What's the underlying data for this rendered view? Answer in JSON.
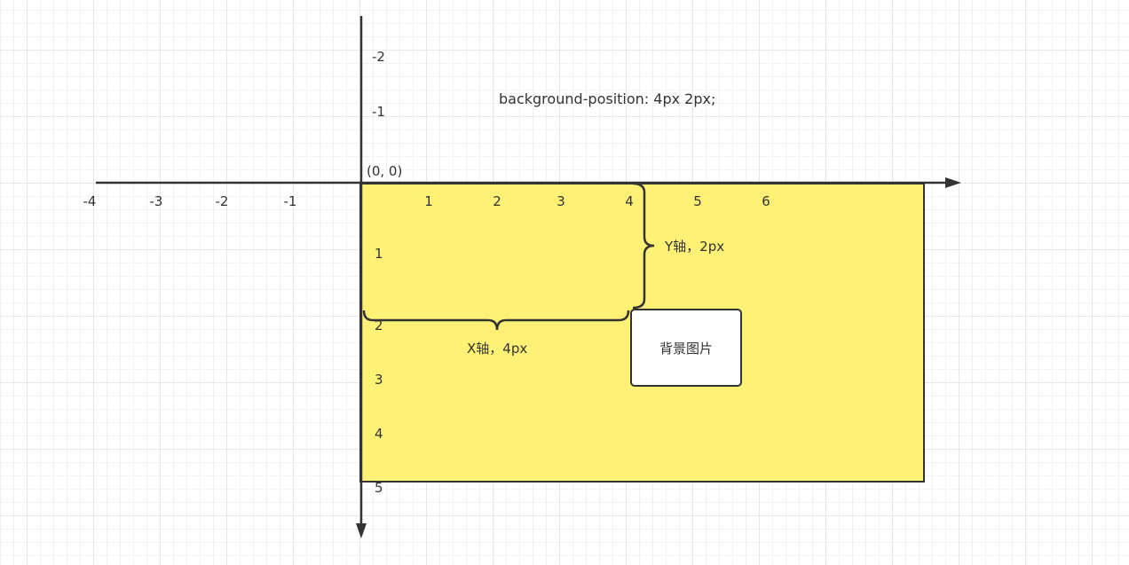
{
  "css_label": "background-position: 4px 2px;",
  "origin_label": "(0, 0)",
  "x_axis_ticks": [
    "-4",
    "-3",
    "-2",
    "-1",
    "1",
    "2",
    "3",
    "4",
    "5",
    "6"
  ],
  "y_axis_ticks_up": [
    "-2",
    "-1"
  ],
  "y_axis_ticks_down": [
    "1",
    "2",
    "3",
    "4",
    "5"
  ],
  "x_offset_label": "X轴，4px",
  "y_offset_label": "Y轴，2px",
  "bg_image_label": "背景图片",
  "colors": {
    "container_fill": "#fff176",
    "stroke": "#333333",
    "grid_major": "#e6e6e6",
    "grid_minor": "#f2f2f2"
  }
}
